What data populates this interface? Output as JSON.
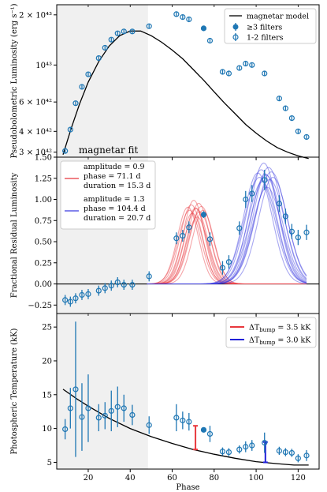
{
  "chart_data": [
    {
      "type": "scatter",
      "ylabel": "Pseudobolometric Luminosity (erg s⁻¹)",
      "yscale": "log",
      "ylim": [
        2.8e+42,
        2.3e+43
      ],
      "xlim": [
        5,
        130
      ],
      "yticks": [
        {
          "value": 3e+42,
          "label": "3 × 10⁴²"
        },
        {
          "value": 4e+42,
          "label": "4 × 10⁴²"
        },
        {
          "value": 6e+42,
          "label": "6 × 10⁴²"
        },
        {
          "value": 1e+43,
          "label": "10⁴³"
        },
        {
          "value": 2e+43,
          "label": "2 × 10⁴³"
        }
      ],
      "shaded_region": {
        "x": [
          5,
          48.5
        ],
        "label": "magnetar fit"
      },
      "legend": {
        "position": "top-right",
        "entries": [
          "magnetar model",
          "≥3 filters",
          "1-2 filters"
        ]
      },
      "model": {
        "name": "magnetar model",
        "color": "#000000",
        "x": [
          8,
          12,
          16,
          20,
          25,
          30,
          35,
          40,
          45,
          50,
          55,
          60,
          65,
          70,
          75,
          80,
          85,
          90,
          95,
          100,
          105,
          110,
          115,
          120,
          125
        ],
        "y": [
          2.9e+42,
          4.2e+42,
          5.9e+42,
          7.9e+42,
          1.05e+43,
          1.3e+43,
          1.5e+43,
          1.6e+43,
          1.6e+43,
          1.5e+43,
          1.37e+43,
          1.23e+43,
          1.09e+43,
          9.4e+42,
          8.1e+42,
          6.9e+42,
          5.9e+42,
          5.1e+42,
          4.4e+42,
          3.9e+42,
          3.5e+42,
          3.2e+42,
          3e+42,
          2.85e+42,
          2.75e+42
        ]
      },
      "series": [
        {
          "name": "1-2 filters",
          "marker": "open-circle",
          "color": "#1f77b4",
          "points": [
            [
              9,
              3.05e+42,
              1e+41
            ],
            [
              11.5,
              4.1e+42,
              1.5e+41
            ],
            [
              14,
              5.9e+42,
              2e+41
            ],
            [
              17,
              7.4e+42,
              2.5e+41
            ],
            [
              20,
              8.8e+42,
              3e+41
            ],
            [
              25,
              1.1e+43,
              4e+41
            ],
            [
              28,
              1.27e+43,
              4e+41
            ],
            [
              31,
              1.42e+43,
              4e+41
            ],
            [
              34,
              1.55e+43,
              5e+41
            ],
            [
              37,
              1.59e+43,
              5e+41
            ],
            [
              41,
              1.59e+43,
              5e+41
            ],
            [
              49,
              1.71e+43,
              5e+41
            ],
            [
              62,
              2.02e+43,
              6e+41
            ],
            [
              65,
              1.94e+43,
              6e+41
            ],
            [
              68,
              1.88e+43,
              6e+41
            ],
            [
              78,
              1.4e+43,
              5e+41
            ],
            [
              84,
              9.1e+42,
              3e+41
            ],
            [
              87,
              8.9e+42,
              3e+41
            ],
            [
              92,
              9.6e+42,
              3e+41
            ],
            [
              95,
              1.02e+43,
              3e+41
            ],
            [
              98,
              1e+43,
              3e+41
            ],
            [
              104,
              8.9e+42,
              3e+41
            ],
            [
              111,
              6.3e+42,
              2e+41
            ],
            [
              114,
              5.5e+42,
              2e+41
            ],
            [
              117,
              4.8e+42,
              1.5e+41
            ],
            [
              120,
              4e+42,
              1.2e+41
            ],
            [
              124,
              3.7e+42,
              1.2e+41
            ]
          ]
        },
        {
          "name": "≥3 filters",
          "marker": "filled-circle",
          "color": "#1f77b4",
          "points": [
            [
              75,
              1.66e+43,
              5e+41
            ]
          ]
        }
      ]
    },
    {
      "type": "line",
      "ylabel": "Fractional Residual Luminosity",
      "ylim": [
        -0.35,
        1.5
      ],
      "xlim": [
        5,
        130
      ],
      "yticks": [
        {
          "value": -0.25,
          "label": "−0.25"
        },
        {
          "value": 0,
          "label": "0.00"
        },
        {
          "value": 0.25,
          "label": "0.25"
        },
        {
          "value": 0.5,
          "label": "0.50"
        },
        {
          "value": 0.75,
          "label": "0.75"
        },
        {
          "value": 1.0,
          "label": "1.00"
        },
        {
          "value": 1.25,
          "label": "1.25"
        },
        {
          "value": 1.5,
          "label": "1.50"
        }
      ],
      "shaded_region": {
        "x": [
          5,
          48.5
        ]
      },
      "zero_line": 0,
      "legend": {
        "position": "top-left",
        "entries": [
          {
            "color": "#e8383d",
            "lines": [
              "amplitude = 0.9",
              "phase = 71.1 d",
              "duration = 15.3 d"
            ]
          },
          {
            "color": "#3b3be0",
            "lines": [
              "amplitude = 1.3",
              "phase = 104.4 d",
              "duration = 20.7 d"
            ]
          }
        ]
      },
      "bumps": [
        {
          "color": "#e8383d",
          "amplitude": 0.9,
          "phase": 71.1,
          "duration": 15.3,
          "x_range": [
            48,
            124
          ]
        },
        {
          "color": "#3b3be0",
          "amplitude": 1.3,
          "phase": 104.4,
          "duration": 20.7,
          "x_range": [
            48,
            124
          ]
        }
      ],
      "series": [
        {
          "name": "1-2 filters",
          "marker": "open-circle",
          "color": "#1f77b4",
          "points": [
            [
              9,
              -0.19,
              0.06
            ],
            [
              11.5,
              -0.21,
              0.06
            ],
            [
              14,
              -0.17,
              0.06
            ],
            [
              17,
              -0.13,
              0.06
            ],
            [
              20,
              -0.12,
              0.06
            ],
            [
              25,
              -0.08,
              0.06
            ],
            [
              28,
              -0.05,
              0.06
            ],
            [
              31,
              -0.02,
              0.06
            ],
            [
              34,
              0.02,
              0.06
            ],
            [
              37,
              -0.01,
              0.06
            ],
            [
              41,
              -0.01,
              0.06
            ],
            [
              49,
              0.09,
              0.06
            ],
            [
              62,
              0.54,
              0.07
            ],
            [
              65,
              0.57,
              0.07
            ],
            [
              68,
              0.67,
              0.07
            ],
            [
              78,
              0.53,
              0.08
            ],
            [
              84,
              0.19,
              0.08
            ],
            [
              87,
              0.26,
              0.08
            ],
            [
              92,
              0.66,
              0.08
            ],
            [
              95,
              1.0,
              0.1
            ],
            [
              98,
              1.07,
              0.1
            ],
            [
              104,
              1.23,
              0.12
            ],
            [
              111,
              0.95,
              0.1
            ],
            [
              114,
              0.8,
              0.09
            ],
            [
              117,
              0.62,
              0.09
            ],
            [
              120,
              0.55,
              0.09
            ],
            [
              124,
              0.61,
              0.09
            ]
          ]
        },
        {
          "name": "≥3 filters",
          "marker": "filled-circle",
          "color": "#1f77b4",
          "points": [
            [
              75,
              0.82,
              0.04
            ]
          ]
        }
      ]
    },
    {
      "type": "scatter",
      "ylabel": "Photospheric Temperature (kK)",
      "xlabel": "Phase",
      "ylim": [
        4,
        27
      ],
      "xlim": [
        5,
        130
      ],
      "yticks": [
        {
          "value": 5,
          "label": "5"
        },
        {
          "value": 10,
          "label": "10"
        },
        {
          "value": 15,
          "label": "15"
        },
        {
          "value": 20,
          "label": "20"
        },
        {
          "value": 25,
          "label": "25"
        }
      ],
      "xticks": [
        {
          "value": 20,
          "label": "20"
        },
        {
          "value": 40,
          "label": "40"
        },
        {
          "value": 60,
          "label": "60"
        },
        {
          "value": 80,
          "label": "80"
        },
        {
          "value": 100,
          "label": "100"
        },
        {
          "value": 120,
          "label": "120"
        }
      ],
      "shaded_region": {
        "x": [
          5,
          48.5
        ]
      },
      "legend": {
        "position": "top-right",
        "entries": [
          {
            "color": "#e8383d",
            "pre": "ΔT",
            "sub": "bump",
            "post": " = 3.5 kK"
          },
          {
            "color": "#2020d8",
            "pre": "ΔT",
            "sub": "bump",
            "post": " = 3.0 kK"
          }
        ]
      },
      "model": {
        "color": "#000000",
        "x": [
          8,
          15,
          20,
          30,
          40,
          50,
          60,
          70,
          80,
          90,
          100,
          110,
          118,
          125
        ],
        "y": [
          15.8,
          14.3,
          13.3,
          11.5,
          10.0,
          8.8,
          7.8,
          6.9,
          6.2,
          5.6,
          5.1,
          4.8,
          4.6,
          4.6
        ]
      },
      "delta_bars": [
        {
          "color": "#e8383d",
          "x": 71.1,
          "y0": 6.9,
          "y1": 10.4
        },
        {
          "color": "#2020d8",
          "x": 104.4,
          "y0": 5.0,
          "y1": 8.0
        }
      ],
      "series": [
        {
          "name": "1-2 filters",
          "marker": "open-circle",
          "color": "#1f77b4",
          "points": [
            [
              9,
              9.9,
              1.5
            ],
            [
              11.5,
              13.0,
              3.0
            ],
            [
              14,
              15.8,
              10.0
            ],
            [
              17,
              11.7,
              5.0
            ],
            [
              20,
              13.0,
              5.0
            ],
            [
              25,
              11.6,
              2.0
            ],
            [
              28,
              11.9,
              2.0
            ],
            [
              31,
              12.6,
              3.0
            ],
            [
              34,
              13.2,
              3.0
            ],
            [
              37,
              13.0,
              2.0
            ],
            [
              41,
              12.0,
              1.5
            ],
            [
              49,
              10.5,
              1.3
            ],
            [
              62,
              11.6,
              2.0
            ],
            [
              65,
              11.2,
              1.3
            ],
            [
              68,
              11.0,
              1.3
            ],
            [
              78,
              9.2,
              1.2
            ],
            [
              84,
              6.6,
              0.6
            ],
            [
              87,
              6.5,
              0.6
            ],
            [
              92,
              6.9,
              0.6
            ],
            [
              95,
              7.3,
              0.8
            ],
            [
              98,
              7.5,
              0.8
            ],
            [
              104,
              7.9,
              1.5
            ],
            [
              111,
              6.7,
              0.6
            ],
            [
              114,
              6.5,
              0.6
            ],
            [
              117,
              6.4,
              0.6
            ],
            [
              120,
              5.6,
              0.6
            ],
            [
              124,
              6.0,
              0.8
            ]
          ]
        },
        {
          "name": "≥3 filters",
          "marker": "filled-circle",
          "color": "#1f77b4",
          "points": [
            [
              75,
              9.8,
              0.3
            ]
          ]
        }
      ]
    }
  ]
}
